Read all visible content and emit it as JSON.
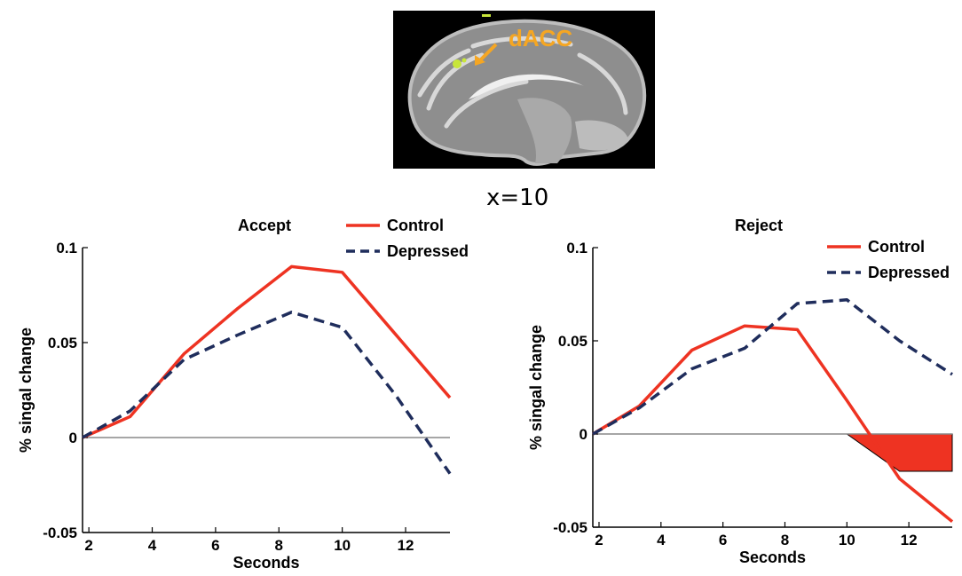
{
  "figure": {
    "region_label": "dACC",
    "slice_label": "x=10"
  },
  "colors": {
    "control": "#ee3322",
    "depressed": "#1f2d5c",
    "zero_line": "#888888",
    "region_highlight": "#c8e63a",
    "region_label": "#f5a623",
    "shaded_area": "#ee3322"
  },
  "chart_data": [
    {
      "type": "line",
      "title": "Accept",
      "xlabel": "Seconds",
      "ylabel": "% singal change",
      "xlim": [
        1.8,
        13.4
      ],
      "ylim": [
        -0.05,
        0.1
      ],
      "xticks": [
        2,
        4,
        6,
        8,
        10,
        12
      ],
      "yticks": [
        -0.05,
        0,
        0.05,
        0.1
      ],
      "ytick_labels": [
        "-0.05",
        "0",
        "0.05",
        "0.1"
      ],
      "grid": false,
      "legend": "top-right",
      "series": [
        {
          "name": "Control",
          "style": "solid",
          "x": [
            1.8,
            3.3,
            5.0,
            6.7,
            8.4,
            10.0,
            11.7,
            13.4
          ],
          "y": [
            0.0,
            0.011,
            0.044,
            0.068,
            0.09,
            0.087,
            0.054,
            0.021
          ]
        },
        {
          "name": "Depressed",
          "style": "dashed",
          "x": [
            1.8,
            3.3,
            5.0,
            6.7,
            8.4,
            10.0,
            11.7,
            13.4
          ],
          "y": [
            0.0,
            0.014,
            0.041,
            0.054,
            0.066,
            0.058,
            0.022,
            -0.019
          ]
        }
      ]
    },
    {
      "type": "line",
      "title": "Reject",
      "xlabel": "Seconds",
      "ylabel": "% singal change",
      "xlim": [
        1.8,
        13.4
      ],
      "ylim": [
        -0.05,
        0.1
      ],
      "xticks": [
        2,
        4,
        6,
        8,
        10,
        12
      ],
      "yticks": [
        -0.05,
        0,
        0.05,
        0.1
      ],
      "ytick_labels": [
        "-0.05",
        "0",
        "0.05",
        "0.1"
      ],
      "grid": false,
      "legend": "top-right",
      "series": [
        {
          "name": "Control",
          "style": "solid",
          "x": [
            1.8,
            3.3,
            5.0,
            6.7,
            8.4,
            10.0,
            11.7,
            13.4
          ],
          "y": [
            0.0,
            0.015,
            0.045,
            0.058,
            0.056,
            0.018,
            -0.024,
            -0.047
          ]
        },
        {
          "name": "Depressed",
          "style": "dashed",
          "x": [
            1.8,
            3.3,
            5.0,
            6.7,
            8.4,
            10.0,
            11.7,
            13.4
          ],
          "y": [
            0.0,
            0.014,
            0.035,
            0.046,
            0.07,
            0.072,
            0.05,
            0.032
          ]
        }
      ],
      "shaded_region": {
        "x": [
          10.0,
          11.7,
          13.4
        ],
        "y": [
          0.0,
          -0.02,
          -0.02
        ]
      }
    }
  ]
}
